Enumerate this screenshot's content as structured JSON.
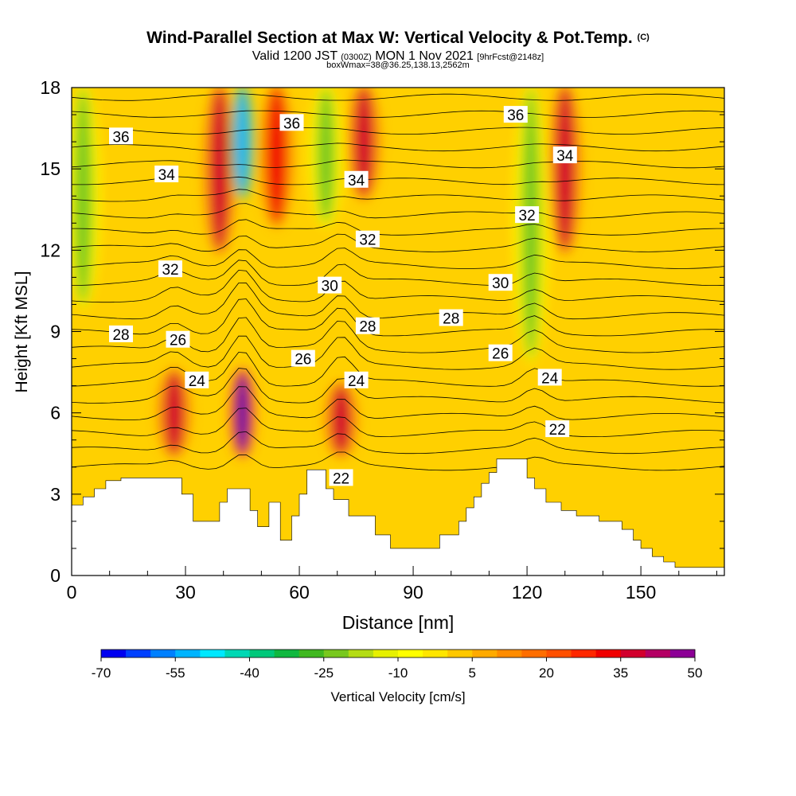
{
  "title": {
    "main": "Wind-Parallel Section at Max W: Vertical Velocity & Pot.Temp.",
    "copyright": "(C)",
    "valid_prefix": "Valid 1200 JST",
    "valid_utc": "(0300Z)",
    "valid_date": "MON 1 Nov 2021",
    "forecast": "[9hrFcst@2148z]",
    "box_info": "boxWmax=38@36.25,138.13,2562m"
  },
  "colors": {
    "ramp": [
      "#0000f0",
      "#0040ff",
      "#0080ff",
      "#00b4ff",
      "#00e8ff",
      "#00d8b4",
      "#00c87a",
      "#10b840",
      "#40b820",
      "#78c81e",
      "#b4dc14",
      "#e6f000",
      "#ffff00",
      "#ffe600",
      "#ffc800",
      "#ffaa00",
      "#ff8c00",
      "#ff6e00",
      "#ff5000",
      "#ff2800",
      "#f00000",
      "#d2002d",
      "#b40064",
      "#8c0096",
      "#6400aa"
    ],
    "terrain": "#ffffff",
    "contour": "#000000"
  },
  "chart_data": {
    "type": "heatmap",
    "xlabel": "Distance [nm]",
    "ylabel": "Height [Kft MSL]",
    "xlim": [
      0,
      172
    ],
    "ylim": [
      0,
      18
    ],
    "x_ticks": [
      0,
      30,
      60,
      90,
      120,
      150
    ],
    "y_ticks": [
      0,
      3,
      6,
      9,
      12,
      15,
      18
    ],
    "colorbar": {
      "label": "Vertical Velocity [cm/s]",
      "tick_labels": [
        "-70",
        "-55",
        "-40",
        "-25",
        "-10",
        "5",
        "20",
        "35",
        "50"
      ],
      "min": -70,
      "max": 50,
      "step": 5
    },
    "vertical_velocity_features": [
      {
        "x": 3,
        "y_range": [
          10,
          18
        ],
        "w_cm_s": -25
      },
      {
        "x": 27,
        "y_range": [
          4.5,
          7.5
        ],
        "w_cm_s": 35
      },
      {
        "x": 39,
        "y_range": [
          12,
          18
        ],
        "w_cm_s": 35
      },
      {
        "x": 45,
        "y_range": [
          4.5,
          7.5
        ],
        "w_cm_s": 50
      },
      {
        "x": 45,
        "y_range": [
          14,
          18
        ],
        "w_cm_s": -55
      },
      {
        "x": 54,
        "y_range": [
          13,
          18
        ],
        "w_cm_s": 30
      },
      {
        "x": 67,
        "y_range": [
          13,
          18
        ],
        "w_cm_s": -25
      },
      {
        "x": 71,
        "y_range": [
          4.5,
          7
        ],
        "w_cm_s": 35
      },
      {
        "x": 77,
        "y_range": [
          14,
          18
        ],
        "w_cm_s": 35
      },
      {
        "x": 121,
        "y_range": [
          8,
          18
        ],
        "w_cm_s": -25
      },
      {
        "x": 130,
        "y_range": [
          12,
          18
        ],
        "w_cm_s": 35
      }
    ],
    "potential_temperature_labels": [
      {
        "text": "36",
        "x": 13,
        "y": 16.2
      },
      {
        "text": "34",
        "x": 25,
        "y": 14.8
      },
      {
        "text": "32",
        "x": 26,
        "y": 11.3
      },
      {
        "text": "28",
        "x": 13,
        "y": 8.9
      },
      {
        "text": "26",
        "x": 28,
        "y": 8.7
      },
      {
        "text": "24",
        "x": 33,
        "y": 7.2
      },
      {
        "text": "36",
        "x": 58,
        "y": 16.7
      },
      {
        "text": "30",
        "x": 68,
        "y": 10.7
      },
      {
        "text": "26",
        "x": 61,
        "y": 8.0
      },
      {
        "text": "34",
        "x": 75,
        "y": 14.6
      },
      {
        "text": "32",
        "x": 78,
        "y": 12.4
      },
      {
        "text": "28",
        "x": 78,
        "y": 9.2
      },
      {
        "text": "24",
        "x": 75,
        "y": 7.2
      },
      {
        "text": "22",
        "x": 71,
        "y": 3.6
      },
      {
        "text": "28",
        "x": 100,
        "y": 9.5
      },
      {
        "text": "36",
        "x": 117,
        "y": 17.0
      },
      {
        "text": "32",
        "x": 120,
        "y": 13.3
      },
      {
        "text": "30",
        "x": 113,
        "y": 10.8
      },
      {
        "text": "26",
        "x": 113,
        "y": 8.2
      },
      {
        "text": "34",
        "x": 130,
        "y": 15.5
      },
      {
        "text": "24",
        "x": 126,
        "y": 7.3
      },
      {
        "text": "22",
        "x": 128,
        "y": 5.4
      }
    ],
    "terrain_profile": [
      [
        0,
        2.6
      ],
      [
        3,
        2.6
      ],
      [
        3,
        2.9
      ],
      [
        6,
        2.9
      ],
      [
        6,
        3.2
      ],
      [
        9,
        3.2
      ],
      [
        9,
        3.5
      ],
      [
        13,
        3.5
      ],
      [
        13,
        3.6
      ],
      [
        29,
        3.6
      ],
      [
        29,
        3.0
      ],
      [
        32,
        3.0
      ],
      [
        32,
        2.0
      ],
      [
        39,
        2.0
      ],
      [
        39,
        2.7
      ],
      [
        41,
        2.7
      ],
      [
        41,
        3.2
      ],
      [
        47,
        3.2
      ],
      [
        47,
        2.4
      ],
      [
        49,
        2.4
      ],
      [
        49,
        1.8
      ],
      [
        52,
        1.8
      ],
      [
        52,
        2.7
      ],
      [
        55,
        2.7
      ],
      [
        55,
        1.3
      ],
      [
        58,
        1.3
      ],
      [
        58,
        2.2
      ],
      [
        60,
        2.2
      ],
      [
        60,
        3.0
      ],
      [
        62,
        3.0
      ],
      [
        62,
        3.9
      ],
      [
        67,
        3.9
      ],
      [
        67,
        3.2
      ],
      [
        69,
        3.2
      ],
      [
        69,
        2.8
      ],
      [
        73,
        2.8
      ],
      [
        73,
        2.2
      ],
      [
        80,
        2.2
      ],
      [
        80,
        1.5
      ],
      [
        84,
        1.5
      ],
      [
        84,
        1.0
      ],
      [
        97,
        1.0
      ],
      [
        97,
        1.5
      ],
      [
        102,
        1.5
      ],
      [
        102,
        2.0
      ],
      [
        104,
        2.0
      ],
      [
        104,
        2.5
      ],
      [
        106,
        2.5
      ],
      [
        106,
        2.9
      ],
      [
        108,
        2.9
      ],
      [
        108,
        3.4
      ],
      [
        110,
        3.4
      ],
      [
        110,
        3.8
      ],
      [
        112,
        3.8
      ],
      [
        112,
        4.3
      ],
      [
        120,
        4.3
      ],
      [
        120,
        3.6
      ],
      [
        122,
        3.6
      ],
      [
        122,
        3.2
      ],
      [
        125,
        3.2
      ],
      [
        125,
        2.7
      ],
      [
        129,
        2.7
      ],
      [
        129,
        2.4
      ],
      [
        133,
        2.4
      ],
      [
        133,
        2.2
      ],
      [
        139,
        2.2
      ],
      [
        139,
        2.0
      ],
      [
        145,
        2.0
      ],
      [
        145,
        1.7
      ],
      [
        148,
        1.7
      ],
      [
        148,
        1.3
      ],
      [
        150,
        1.3
      ],
      [
        150,
        1.0
      ],
      [
        153,
        1.0
      ],
      [
        153,
        0.7
      ],
      [
        156,
        0.7
      ],
      [
        156,
        0.5
      ],
      [
        159,
        0.5
      ],
      [
        159,
        0.3
      ],
      [
        172,
        0.3
      ]
    ]
  }
}
